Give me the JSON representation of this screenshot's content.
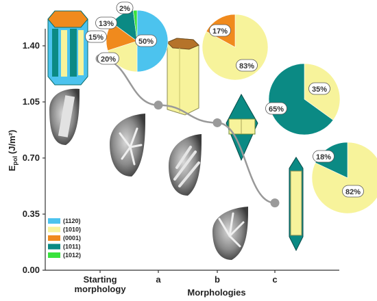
{
  "chart_data": {
    "type": "line",
    "xlabel": "Morphologies",
    "ylabel": "E",
    "ylabel_sub": "pol",
    "ylabel_unit": "(J/m²)",
    "categories": [
      "Starting morphology",
      "a",
      "b",
      "c"
    ],
    "category_lines": [
      [
        "Starting",
        "morphology"
      ],
      [
        "a"
      ],
      [
        "b"
      ],
      [
        "c"
      ]
    ],
    "values": [
      1.32,
      1.03,
      0.92,
      0.42
    ],
    "ylim": [
      0,
      1.6
    ],
    "yticks": [
      0.0,
      0.35,
      0.7,
      1.05,
      1.4
    ],
    "ytick_labels": [
      "0.00",
      "0.35",
      "0.70",
      "1.05",
      "1.40"
    ],
    "grid": false,
    "line_color": "#999999",
    "marker_color": "#9a9a9a",
    "legend": {
      "placement": "bottom-left",
      "entries": [
        {
          "label": "(1120)",
          "color": "#4cc3ee"
        },
        {
          "label": "(1010)",
          "color": "#f7f39b"
        },
        {
          "label": "(0001)",
          "color": "#f08a1d"
        },
        {
          "label": "(1011)",
          "color": "#0b8a84"
        },
        {
          "label": "(1012)",
          "color": "#39e23d"
        }
      ]
    },
    "pies": [
      {
        "morphology": "Starting morphology",
        "slices": [
          {
            "label": "50%",
            "value": 50,
            "color": "#4cc3ee"
          },
          {
            "label": "20%",
            "value": 20,
            "color": "#f7f39b"
          },
          {
            "label": "15%",
            "value": 15,
            "color": "#f08a1d"
          },
          {
            "label": "13%",
            "value": 13,
            "color": "#0b8a84"
          },
          {
            "label": "2%",
            "value": 2,
            "color": "#39e23d"
          }
        ]
      },
      {
        "morphology": "a",
        "slices": [
          {
            "label": "83%",
            "value": 83,
            "color": "#f7f39b"
          },
          {
            "label": "17%",
            "value": 17,
            "color": "#f08a1d"
          }
        ]
      },
      {
        "morphology": "b",
        "slices": [
          {
            "label": "35%",
            "value": 35,
            "color": "#f7f39b"
          },
          {
            "label": "65%",
            "value": 65,
            "color": "#0b8a84"
          }
        ]
      },
      {
        "morphology": "c",
        "slices": [
          {
            "label": "82%",
            "value": 82,
            "color": "#f7f39b"
          },
          {
            "label": "18%",
            "value": 18,
            "color": "#0b8a84"
          }
        ]
      }
    ]
  }
}
